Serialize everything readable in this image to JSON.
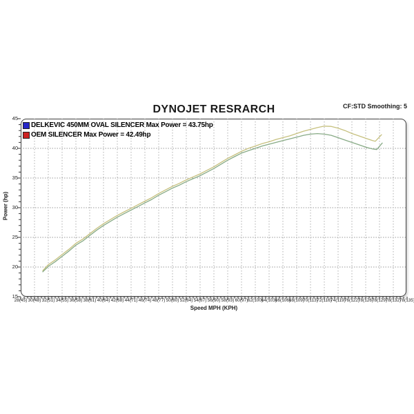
{
  "header": {
    "title": "DYNOJET RESRARCH",
    "smoothing_note": "CF:STD Smoothing: 5"
  },
  "legend": {
    "items": [
      {
        "label": "DELKEVIC 450MM OVAL SILENCER Max Power = 43.75hp",
        "swatch_color": "#2626c8",
        "swatch_icon": "blue-square-swatch"
      },
      {
        "label": "OEM SILENCER Max Power = 42.49hp",
        "swatch_color": "#cc2222",
        "swatch_icon": "red-square-swatch"
      }
    ]
  },
  "chart_data": {
    "type": "line",
    "title": "DYNOJET RESRARCH",
    "xlabel": "Speed MPH (KPH)",
    "ylabel": "Power (hp)",
    "ylim": [
      15,
      45
    ],
    "y_ticks": [
      15,
      20,
      25,
      30,
      35,
      40,
      45
    ],
    "x_tick_labels": [
      "28(45)",
      "30(48)",
      "32(51)",
      "34(55)",
      "36(58)",
      "38(61)",
      "40(64)",
      "42(68)",
      "44(71)",
      "46(74)",
      "48(77)",
      "50(80)",
      "52(84)",
      "54(87)",
      "56(90)",
      "58(93)",
      "60(97)",
      "62(100)",
      "64(103)",
      "66(106)",
      "68(109)",
      "70(113)",
      "72(116)",
      "74(119)",
      "76(122)",
      "78(126)",
      "78(129)",
      "78(132)",
      "78(135)"
    ],
    "x_mph_per_tick": 2,
    "x_start_mph": 28,
    "grid": {
      "horizontal": "dotted",
      "vertical": "dotted",
      "h_color": "#9a9a9a",
      "v_color": "#aeaeae"
    },
    "legend_position": "top-left-inside",
    "series": [
      {
        "name": "DELKEVIC 450MM OVAL SILENCER",
        "max_power_hp": 43.75,
        "line_color": "#c6c07e",
        "points": [
          [
            31.2,
            19.4
          ],
          [
            32,
            20.4
          ],
          [
            33,
            21.2
          ],
          [
            34,
            22.1
          ],
          [
            35,
            23.0
          ],
          [
            36,
            24.0
          ],
          [
            37,
            24.7
          ],
          [
            38,
            25.6
          ],
          [
            39,
            26.5
          ],
          [
            40,
            27.3
          ],
          [
            41,
            28.0
          ],
          [
            42,
            28.7
          ],
          [
            43,
            29.3
          ],
          [
            44,
            29.9
          ],
          [
            45,
            30.5
          ],
          [
            46,
            31.1
          ],
          [
            47,
            31.7
          ],
          [
            48,
            32.4
          ],
          [
            49,
            33.0
          ],
          [
            50,
            33.6
          ],
          [
            51,
            34.1
          ],
          [
            52,
            34.7
          ],
          [
            53,
            35.2
          ],
          [
            54,
            35.7
          ],
          [
            55,
            36.3
          ],
          [
            56,
            36.9
          ],
          [
            57,
            37.6
          ],
          [
            58,
            38.3
          ],
          [
            59,
            38.9
          ],
          [
            60,
            39.5
          ],
          [
            61,
            40.0
          ],
          [
            62,
            40.4
          ],
          [
            63,
            40.8
          ],
          [
            64,
            41.1
          ],
          [
            65,
            41.5
          ],
          [
            66,
            41.8
          ],
          [
            67,
            42.1
          ],
          [
            68,
            42.5
          ],
          [
            69,
            42.9
          ],
          [
            70,
            43.2
          ],
          [
            71,
            43.5
          ],
          [
            72,
            43.75
          ],
          [
            73,
            43.7
          ],
          [
            74,
            43.4
          ],
          [
            75,
            43.0
          ],
          [
            76,
            42.5
          ],
          [
            77,
            42.1
          ],
          [
            78,
            41.7
          ],
          [
            79,
            41.3
          ],
          [
            79.4,
            41.2
          ],
          [
            80.3,
            42.3
          ]
        ]
      },
      {
        "name": "OEM SILENCER",
        "max_power_hp": 42.49,
        "line_color": "#87aa85",
        "points": [
          [
            31.2,
            19.2
          ],
          [
            32,
            20.1
          ],
          [
            33,
            20.9
          ],
          [
            34,
            21.8
          ],
          [
            35,
            22.7
          ],
          [
            36,
            23.7
          ],
          [
            37,
            24.4
          ],
          [
            38,
            25.3
          ],
          [
            39,
            26.2
          ],
          [
            40,
            27.0
          ],
          [
            41,
            27.7
          ],
          [
            42,
            28.4
          ],
          [
            43,
            29.0
          ],
          [
            44,
            29.6
          ],
          [
            45,
            30.2
          ],
          [
            46,
            30.8
          ],
          [
            47,
            31.4
          ],
          [
            48,
            32.1
          ],
          [
            49,
            32.7
          ],
          [
            50,
            33.3
          ],
          [
            51,
            33.8
          ],
          [
            52,
            34.4
          ],
          [
            53,
            34.9
          ],
          [
            54,
            35.4
          ],
          [
            55,
            36.0
          ],
          [
            56,
            36.6
          ],
          [
            57,
            37.3
          ],
          [
            58,
            38.0
          ],
          [
            59,
            38.6
          ],
          [
            60,
            39.2
          ],
          [
            61,
            39.6
          ],
          [
            62,
            40.0
          ],
          [
            63,
            40.4
          ],
          [
            64,
            40.7
          ],
          [
            65,
            41.0
          ],
          [
            66,
            41.3
          ],
          [
            67,
            41.6
          ],
          [
            68,
            41.9
          ],
          [
            69,
            42.2
          ],
          [
            70,
            42.4
          ],
          [
            71,
            42.49
          ],
          [
            72,
            42.4
          ],
          [
            73,
            42.2
          ],
          [
            74,
            41.8
          ],
          [
            75,
            41.4
          ],
          [
            76,
            41.0
          ],
          [
            77,
            40.6
          ],
          [
            78,
            40.2
          ],
          [
            79,
            39.9
          ],
          [
            79.6,
            39.8
          ],
          [
            80.4,
            40.9
          ]
        ]
      }
    ]
  }
}
